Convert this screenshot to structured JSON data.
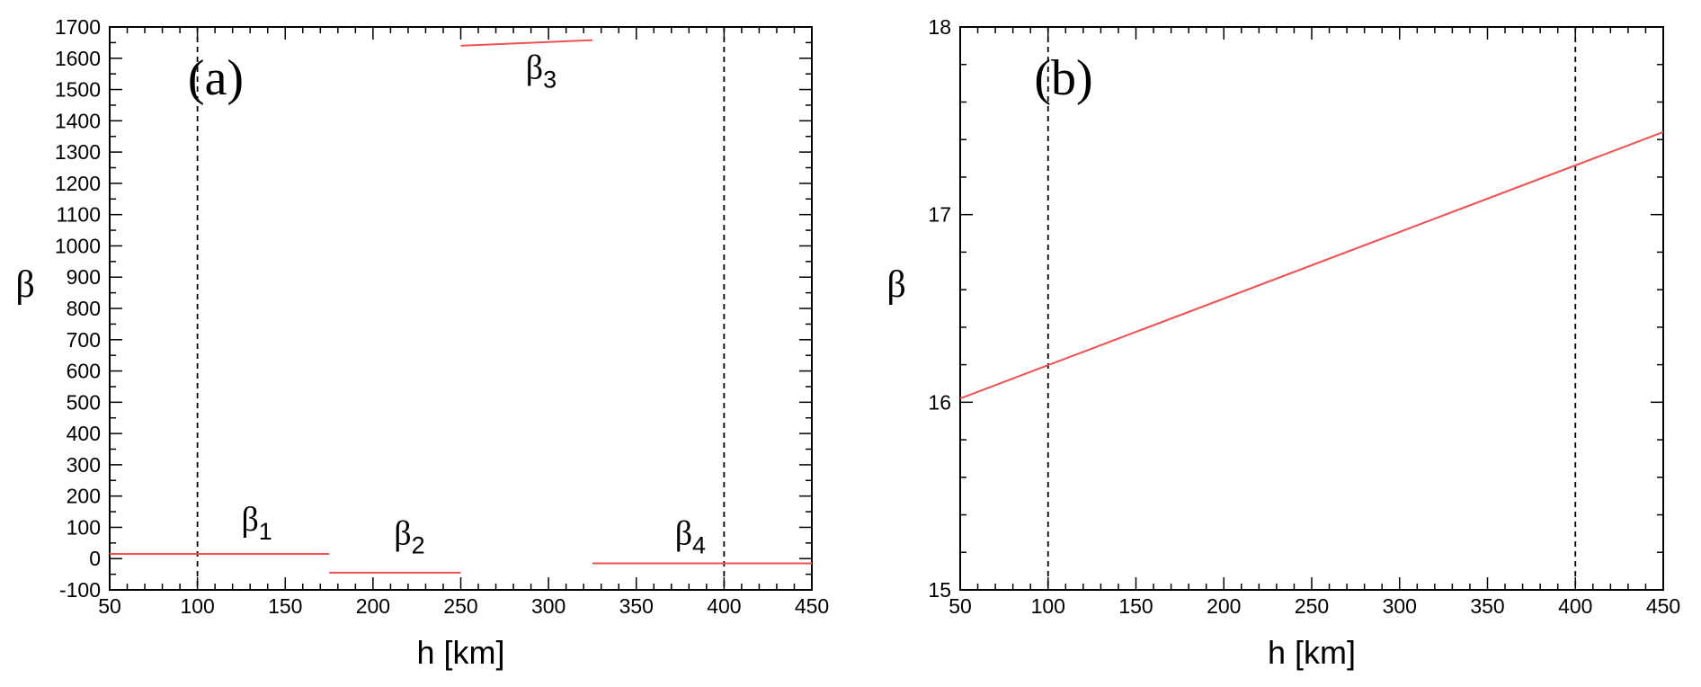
{
  "chart_data": [
    {
      "type": "line",
      "panel_label": "(a)",
      "xlabel": "h [km]",
      "ylabel": "β",
      "xlim": [
        50,
        450
      ],
      "ylim": [
        -100,
        1700
      ],
      "xticks": [
        50,
        100,
        150,
        200,
        250,
        300,
        350,
        400,
        450
      ],
      "yticks": [
        -100,
        0,
        100,
        200,
        300,
        400,
        500,
        600,
        700,
        800,
        900,
        1000,
        1100,
        1200,
        1300,
        1400,
        1500,
        1600,
        1700
      ],
      "vlines": [
        100,
        400
      ],
      "line_color": "#f05050",
      "series": [
        {
          "name": "β1",
          "label_main": "β",
          "label_sub": "1",
          "label_at": [
            125,
            90
          ],
          "x": [
            50,
            175
          ],
          "y": [
            15,
            15
          ]
        },
        {
          "name": "β2",
          "label_main": "β",
          "label_sub": "2",
          "label_at": [
            212,
            45
          ],
          "x": [
            175,
            250
          ],
          "y": [
            -45,
            -45
          ]
        },
        {
          "name": "β3",
          "label_main": "β",
          "label_sub": "3",
          "label_at": [
            287,
            1535
          ],
          "x": [
            250,
            325
          ],
          "y": [
            1640,
            1658
          ]
        },
        {
          "name": "β4",
          "label_main": "β",
          "label_sub": "4",
          "label_at": [
            372,
            45
          ],
          "x": [
            325,
            450
          ],
          "y": [
            -15,
            -15
          ]
        }
      ]
    },
    {
      "type": "line",
      "panel_label": "(b)",
      "xlabel": "h [km]",
      "ylabel": "β",
      "xlim": [
        50,
        450
      ],
      "ylim": [
        15,
        18
      ],
      "xticks": [
        50,
        100,
        150,
        200,
        250,
        300,
        350,
        400,
        450
      ],
      "yticks": [
        15,
        16,
        17,
        18
      ],
      "vlines": [
        100,
        400
      ],
      "line_color": "#f05050",
      "series": [
        {
          "x": [
            50,
            450
          ],
          "y": [
            16.02,
            17.44
          ]
        }
      ]
    }
  ]
}
